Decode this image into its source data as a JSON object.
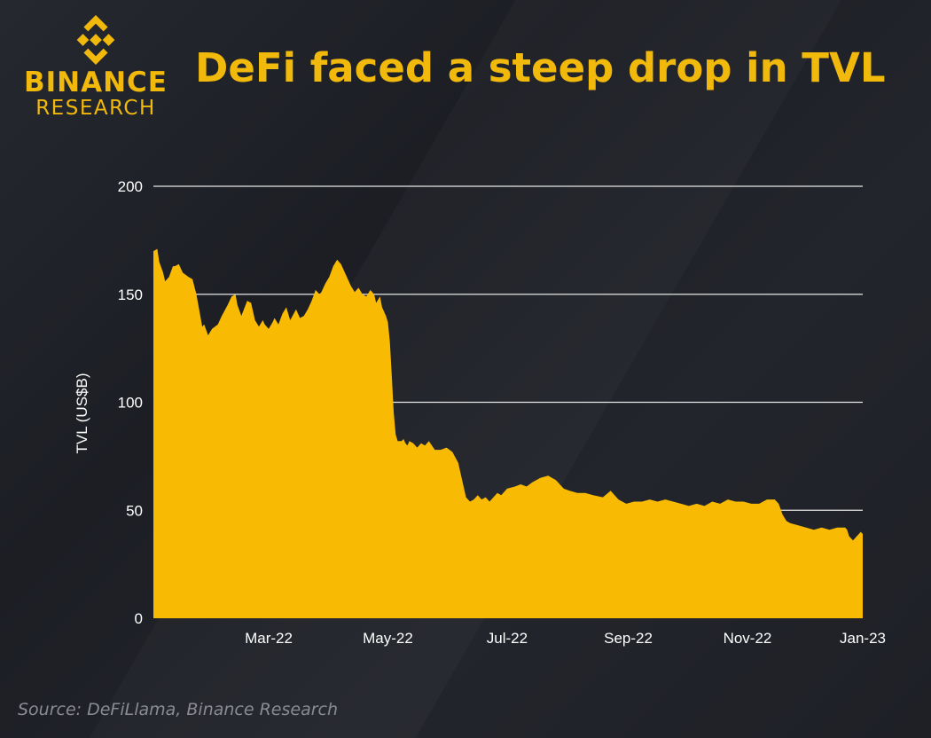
{
  "brand": {
    "name": "BINANCE",
    "sub": "RESEARCH",
    "color": "#F0B90B"
  },
  "source": "Source: DeFiLlama, Binance Research",
  "chart_data": {
    "type": "area",
    "title": "DeFi faced a steep drop in TVL",
    "xlabel": "",
    "ylabel": "TVL (US$B)",
    "ylim": [
      0,
      200
    ],
    "yticks": [
      0,
      50,
      100,
      150,
      200
    ],
    "xlim": [
      0,
      363
    ],
    "xticks": [
      {
        "label": "Mar-22",
        "day": 59
      },
      {
        "label": "May-22",
        "day": 120
      },
      {
        "label": "Jul-22",
        "day": 181
      },
      {
        "label": "Sep-22",
        "day": 243
      },
      {
        "label": "Nov-22",
        "day": 304
      },
      {
        "label": "Jan-23",
        "day": 363
      }
    ],
    "fill_color": "#F8BA03",
    "grid": true,
    "series": [
      {
        "name": "TVL",
        "x": [
          0,
          2,
          3,
          5,
          6,
          8,
          10,
          11,
          13,
          15,
          18,
          20,
          22,
          25,
          26,
          28,
          30,
          33,
          35,
          38,
          40,
          42,
          43,
          45,
          48,
          50,
          52,
          54,
          56,
          57,
          59,
          61,
          62,
          64,
          66,
          68,
          70,
          73,
          75,
          77,
          79,
          81,
          83,
          85,
          86,
          88,
          90,
          92,
          94,
          96,
          99,
          101,
          103,
          105,
          107,
          109,
          111,
          113,
          114,
          116,
          117,
          118,
          119,
          120,
          121,
          122,
          123,
          124,
          125,
          127,
          128,
          129,
          130,
          131,
          133,
          135,
          137,
          139,
          141,
          144,
          147,
          150,
          153,
          156,
          158,
          160,
          162,
          164,
          166,
          168,
          170,
          172,
          174,
          176,
          178,
          181,
          185,
          188,
          191,
          194,
          198,
          202,
          206,
          210,
          213,
          217,
          221,
          225,
          230,
          234,
          238,
          242,
          246,
          250,
          254,
          258,
          262,
          266,
          270,
          274,
          278,
          282,
          286,
          290,
          294,
          298,
          302,
          306,
          310,
          314,
          318,
          320,
          322,
          324,
          326,
          330,
          334,
          338,
          342,
          346,
          350,
          354,
          355,
          356,
          358,
          362,
          363
        ],
        "y": [
          170,
          171,
          165,
          160,
          156,
          158,
          163,
          163,
          164,
          160,
          158,
          157,
          150,
          135,
          136,
          131,
          134,
          136,
          140,
          145,
          149,
          150,
          145,
          140,
          147,
          146,
          138,
          135,
          138,
          136,
          134,
          137,
          139,
          136,
          141,
          144,
          138,
          143,
          139,
          140,
          143,
          147,
          152,
          150,
          151,
          155,
          158,
          163,
          166,
          164,
          158,
          154,
          151,
          153,
          150,
          149,
          152,
          150,
          146,
          149,
          144,
          142,
          140,
          137,
          128,
          112,
          95,
          85,
          82,
          82,
          83,
          81,
          80,
          82,
          81,
          79,
          81,
          80,
          82,
          78,
          78,
          79,
          77,
          72,
          64,
          56,
          54,
          55,
          57,
          55,
          56,
          54,
          56,
          58,
          57,
          60,
          61,
          62,
          61,
          63,
          65,
          66,
          64,
          60,
          59,
          58,
          58,
          57,
          56,
          59,
          55,
          53,
          54,
          54,
          55,
          54,
          55,
          54,
          53,
          52,
          53,
          52,
          54,
          53,
          55,
          54,
          54,
          53,
          53,
          55,
          55,
          53,
          48,
          45,
          44,
          43,
          42,
          41,
          42,
          41,
          42,
          42,
          41,
          38,
          36,
          40,
          39
        ]
      }
    ]
  }
}
